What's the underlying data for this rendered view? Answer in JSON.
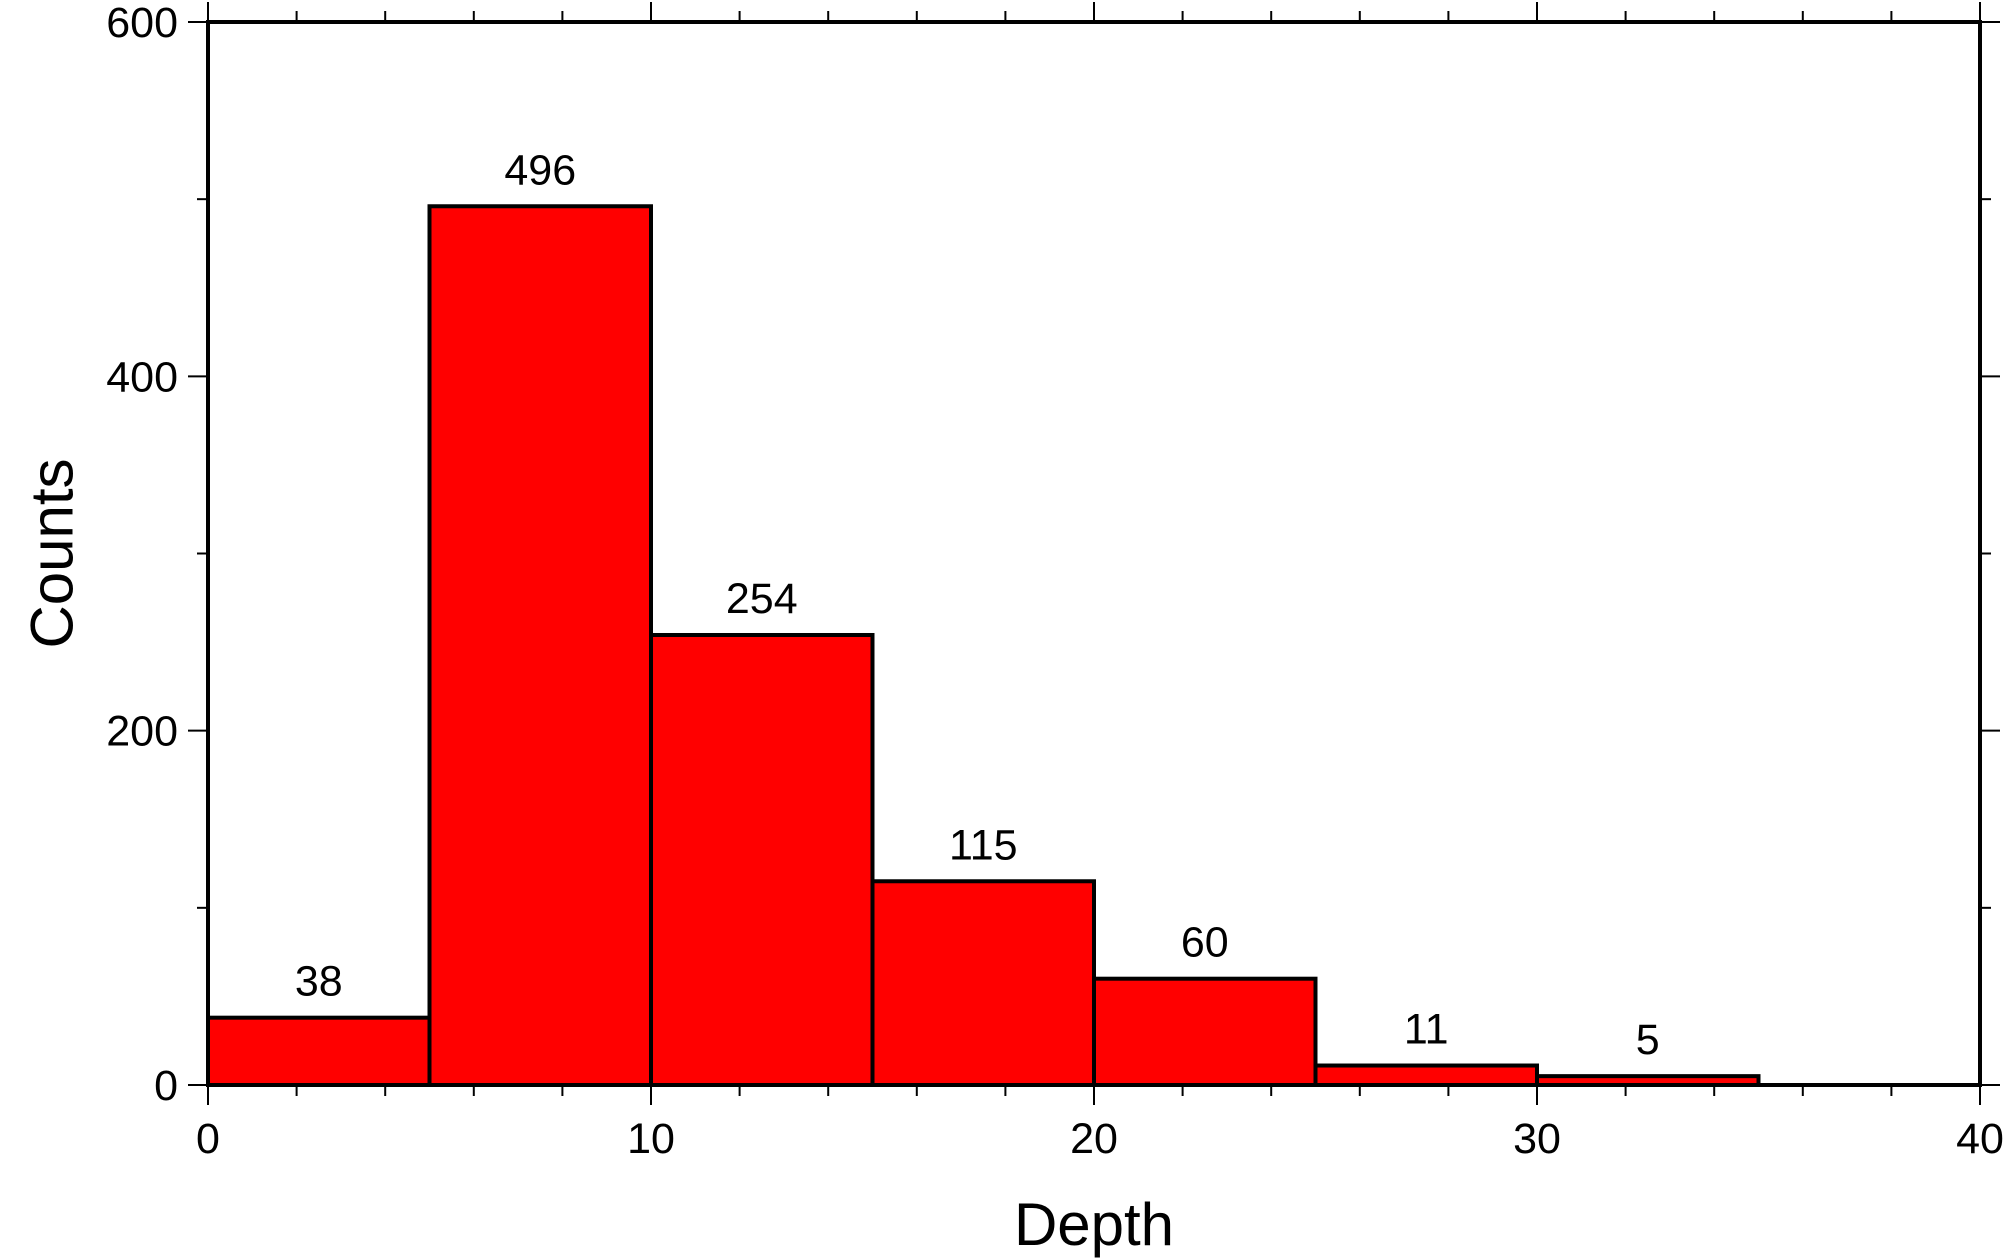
{
  "chart_data": {
    "type": "bar",
    "subtype": "histogram",
    "xlabel": "Depth",
    "ylabel": "Counts",
    "xlim": [
      0,
      40
    ],
    "ylim": [
      0,
      600
    ],
    "xticks": [
      0,
      10,
      20,
      30,
      40
    ],
    "yticks": [
      0,
      200,
      400,
      600
    ],
    "bin_width": 5,
    "bins": [
      {
        "x0": 0,
        "x1": 5,
        "value": 38
      },
      {
        "x0": 5,
        "x1": 10,
        "value": 496
      },
      {
        "x0": 10,
        "x1": 15,
        "value": 254
      },
      {
        "x0": 15,
        "x1": 20,
        "value": 115
      },
      {
        "x0": 20,
        "x1": 25,
        "value": 60
      },
      {
        "x0": 25,
        "x1": 30,
        "value": 11
      },
      {
        "x0": 30,
        "x1": 35,
        "value": 5
      }
    ],
    "bar_color": "#ff0000",
    "edge_color": "#000000",
    "grid": false,
    "legend": "none"
  }
}
